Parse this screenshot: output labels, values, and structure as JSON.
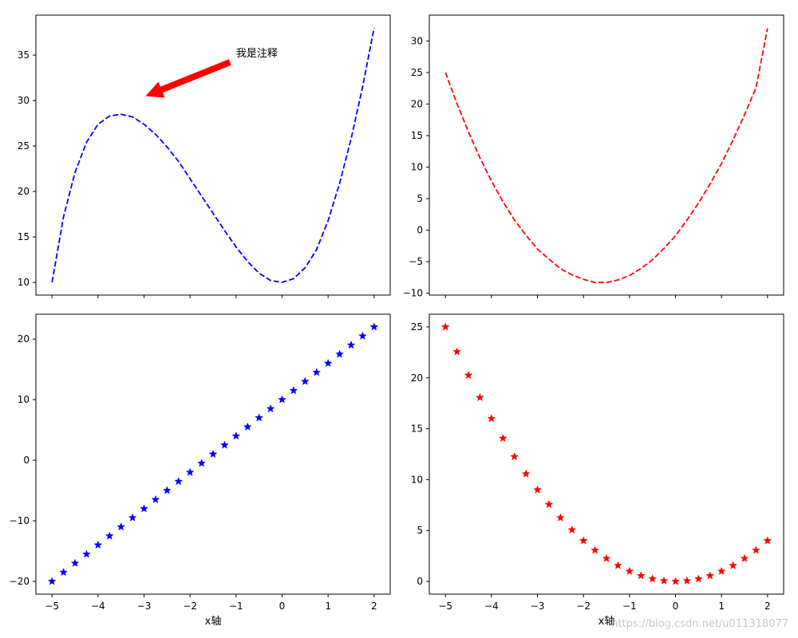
{
  "chart_data": [
    {
      "type": "line",
      "panel": "top-left",
      "line_style": "dashed",
      "color": "#0000ff",
      "xlim": [
        -5.35,
        2.35
      ],
      "ylim": [
        8.6,
        39.4
      ],
      "xticks": [
        -5,
        -4,
        -3,
        -2,
        -1,
        0,
        1,
        2
      ],
      "xticklabels_visible": false,
      "yticks": [
        10,
        15,
        20,
        25,
        30,
        35
      ],
      "xlabel": "",
      "series": [
        {
          "x": [
            -5,
            -4.75,
            -4.5,
            -4.25,
            -4,
            -3.75,
            -3.5,
            -3.25,
            -3,
            -2.75,
            -2.5,
            -2.25,
            -2,
            -1.75,
            -1.5,
            -1.25,
            -1,
            -0.75,
            -0.5,
            -0.25,
            0,
            0.25,
            0.5,
            0.75,
            1,
            1.25,
            1.5,
            1.75,
            2
          ],
          "y": [
            10,
            17.2,
            22.1,
            25.4,
            27.4,
            28.3,
            28.5,
            28.2,
            27.4,
            26.3,
            24.9,
            23.3,
            21.4,
            19.5,
            17.6,
            15.7,
            13.9,
            12.3,
            11.0,
            10.2,
            10.0,
            10.4,
            11.6,
            13.6,
            16.8,
            20.9,
            25.8,
            31.5,
            38.0
          ]
        }
      ],
      "annotation": {
        "text": "我是注释",
        "xytext": [
          -1,
          35
        ],
        "xy": [
          -3,
          30
        ],
        "arrow_color": "#ff0000"
      }
    },
    {
      "type": "line",
      "panel": "top-right",
      "line_style": "dashed",
      "color": "#ff0000",
      "xlim": [
        -5.35,
        2.35
      ],
      "ylim": [
        -10.3,
        34.1
      ],
      "xticks": [
        -5,
        -4,
        -3,
        -2,
        -1,
        0,
        1,
        2
      ],
      "xticklabels_visible": false,
      "yticks": [
        -10,
        -5,
        0,
        5,
        10,
        15,
        20,
        25,
        30
      ],
      "xlabel": "",
      "series": [
        {
          "x": [
            -5,
            -4.75,
            -4.5,
            -4.25,
            -4,
            -3.75,
            -3.5,
            -3.25,
            -3,
            -2.75,
            -2.5,
            -2.25,
            -2,
            -1.75,
            -1.5,
            -1.25,
            -1,
            -0.75,
            -0.5,
            -0.25,
            0,
            0.25,
            0.5,
            0.75,
            1,
            1.25,
            1.5,
            1.75,
            2
          ],
          "y": [
            25,
            20.1,
            15.6,
            11.5,
            7.8,
            4.5,
            1.6,
            -0.8,
            -3.0,
            -4.6,
            -6.1,
            -7.1,
            -7.8,
            -8.3,
            -8.3,
            -7.9,
            -7.2,
            -6.1,
            -4.7,
            -2.9,
            -0.9,
            1.6,
            4.3,
            7.3,
            10.6,
            14.3,
            18.3,
            22.6,
            32.0
          ]
        }
      ]
    },
    {
      "type": "scatter",
      "panel": "bottom-left",
      "marker": "star",
      "color": "#0000ff",
      "xlim": [
        -5.35,
        2.35
      ],
      "ylim": [
        -22.1,
        24.1
      ],
      "xticks": [
        -5,
        -4,
        -3,
        -2,
        -1,
        0,
        1,
        2
      ],
      "xticklabels": [
        "−5",
        "−4",
        "−3",
        "−2",
        "−1",
        "0",
        "1",
        "2"
      ],
      "yticks": [
        -20,
        -10,
        0,
        10,
        20
      ],
      "yticklabels": [
        "−20",
        "−10",
        "0",
        "10",
        "20"
      ],
      "xlabel": "x轴",
      "series": [
        {
          "x": [
            -5,
            -4.75,
            -4.5,
            -4.25,
            -4,
            -3.75,
            -3.5,
            -3.25,
            -3,
            -2.75,
            -2.5,
            -2.25,
            -2,
            -1.75,
            -1.5,
            -1.25,
            -1,
            -0.75,
            -0.5,
            -0.25,
            0,
            0.25,
            0.5,
            0.75,
            1,
            1.25,
            1.5,
            1.75,
            2
          ],
          "y": [
            -20,
            -18.5,
            -17,
            -15.5,
            -14,
            -12.5,
            -11,
            -9.5,
            -8,
            -6.5,
            -5,
            -3.5,
            -2,
            -0.5,
            1,
            2.5,
            4,
            5.5,
            7,
            8.5,
            10,
            11.5,
            13,
            14.5,
            16,
            17.5,
            19,
            20.5,
            22
          ]
        }
      ]
    },
    {
      "type": "scatter",
      "panel": "bottom-right",
      "marker": "star",
      "color": "#ff0000",
      "xlim": [
        -5.35,
        2.35
      ],
      "ylim": [
        -1.25,
        26.25
      ],
      "xticks": [
        -5,
        -4,
        -3,
        -2,
        -1,
        0,
        1,
        2
      ],
      "xticklabels": [
        "−5",
        "−4",
        "−3",
        "−2",
        "−1",
        "0",
        "1",
        "2"
      ],
      "yticks": [
        0,
        5,
        10,
        15,
        20,
        25
      ],
      "yticklabels": [
        "0",
        "5",
        "10",
        "15",
        "20",
        "25"
      ],
      "xlabel": "x轴",
      "series": [
        {
          "x": [
            -5,
            -4.75,
            -4.5,
            -4.25,
            -4,
            -3.75,
            -3.5,
            -3.25,
            -3,
            -2.75,
            -2.5,
            -2.25,
            -2,
            -1.75,
            -1.5,
            -1.25,
            -1,
            -0.75,
            -0.5,
            -0.25,
            0,
            0.25,
            0.5,
            0.75,
            1,
            1.25,
            1.5,
            1.75,
            2
          ],
          "y": [
            25,
            22.56,
            20.25,
            18.06,
            16,
            14.06,
            12.25,
            10.56,
            9,
            7.56,
            6.25,
            5.06,
            4,
            3.06,
            2.25,
            1.56,
            1,
            0.56,
            0.25,
            0.06,
            0,
            0.06,
            0.25,
            0.56,
            1,
            1.56,
            2.25,
            3.06,
            4
          ]
        }
      ]
    }
  ],
  "watermark": "https://blog.csdn.net/u011318077"
}
